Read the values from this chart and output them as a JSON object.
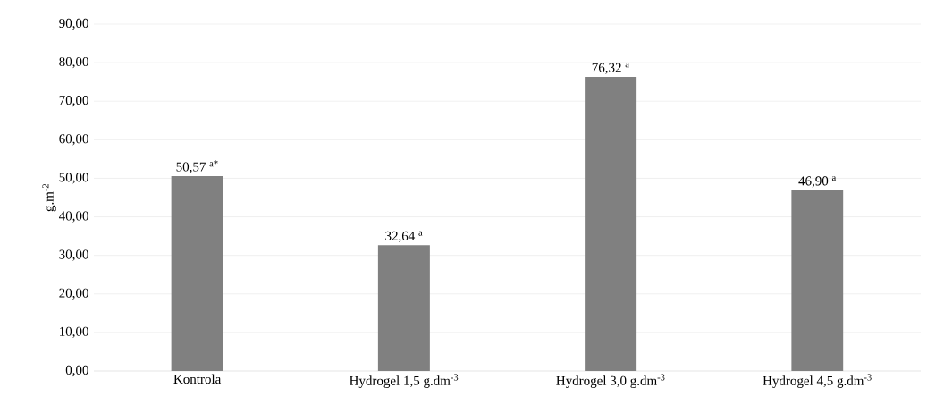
{
  "chart_data": {
    "type": "bar",
    "ylabel": "g.m$^{-2}$",
    "categories": [
      "Kontrola",
      "Hydrogel  1,5 g.dm$^{-3}$",
      "Hydrogel  3,0 g.dm$^{-3}$",
      "Hydrogel  4,5 g.dm$^{-3}$"
    ],
    "values": [
      50.57,
      32.64,
      76.32,
      46.9
    ],
    "value_labels": [
      "50,57 $^{a*}$",
      "32,64 $^{a}$",
      "76,32 $^{a}$",
      "46,90 $^{a}$"
    ],
    "color": "#808080",
    "ylim": [
      0,
      90
    ],
    "yticks": [
      {
        "value": 0,
        "label": "0,00"
      },
      {
        "value": 10,
        "label": "10,00"
      },
      {
        "value": 20,
        "label": "20,00"
      },
      {
        "value": 30,
        "label": "30,00"
      },
      {
        "value": 40,
        "label": "40,00"
      },
      {
        "value": 50,
        "label": "50,00"
      },
      {
        "value": 60,
        "label": "60,00"
      },
      {
        "value": 70,
        "label": "70,00"
      },
      {
        "value": 80,
        "label": "80,00"
      },
      {
        "value": 90,
        "label": "90,00"
      }
    ],
    "grid": "y"
  }
}
